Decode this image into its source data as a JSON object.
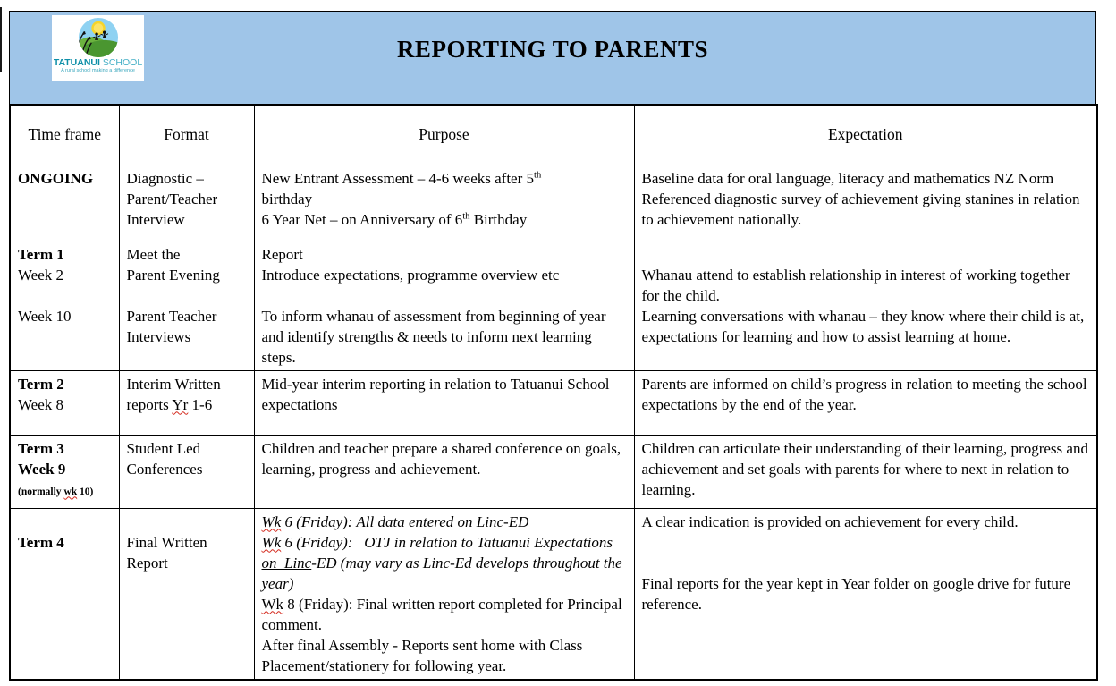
{
  "page": {
    "band_color": "#9FC5E8",
    "title": "REPORTING TO PARENTS"
  },
  "logo": {
    "name": "TATUANUI",
    "suffix": " SCHOOL",
    "tagline": "A rural school making a difference",
    "name_color": "#0e8fa8",
    "suffix_color": "#43afc6",
    "emblem": "school-sun-hills-children-emblem"
  },
  "table": {
    "headers": [
      "Time frame",
      "Format",
      "Purpose",
      "Expectation"
    ],
    "rows": [
      {
        "cells": [
          [
            [
              {
                "t": "ONGOING",
                "b": 1
              }
            ]
          ],
          [
            [
              {
                "t": "Diagnostic –"
              }
            ],
            [
              {
                "t": "Parent/Teacher"
              }
            ],
            [
              {
                "t": "Interview"
              }
            ]
          ],
          [
            [
              {
                "t": "New Entrant Assessment – 4-6 weeks after 5"
              },
              {
                "t": "th",
                "sup": 1
              }
            ],
            [
              {
                "t": "birthday"
              }
            ],
            [
              {
                "t": "6 Year Net – on Anniversary of 6"
              },
              {
                "t": "th",
                "sup": 1
              },
              {
                "t": " Birthday"
              }
            ]
          ],
          [
            [
              {
                "t": "Baseline data for oral language, literacy and mathematics NZ Norm Referenced diagnostic survey of achievement giving stanines in relation to achievement nationally."
              }
            ]
          ]
        ]
      },
      {
        "cells": [
          [
            [
              {
                "t": "Term 1",
                "b": 1
              }
            ],
            [
              {
                "t": "Week 2"
              }
            ],
            [],
            [
              {
                "t": "Week 10"
              }
            ]
          ],
          [
            [
              {
                "t": "Meet the"
              }
            ],
            [
              {
                "t": "Parent Evening"
              }
            ],
            [],
            [
              {
                "t": "Parent Teacher"
              }
            ],
            [
              {
                "t": "Interviews"
              }
            ]
          ],
          [
            [
              {
                "t": "Report"
              }
            ],
            [
              {
                "t": "Introduce expectations, programme overview etc"
              }
            ],
            [],
            [
              {
                "t": "To inform whanau of assessment from beginning of year and identify strengths & needs to inform next learning steps."
              }
            ]
          ],
          [
            [],
            [
              {
                "t": "Whanau attend to establish relationship in interest of working together for the child."
              }
            ],
            [
              {
                "t": "Learning conversations with whanau – they know where their child is at, expectations for learning and how to assist learning at home."
              }
            ]
          ]
        ]
      },
      {
        "cells": [
          [
            [
              {
                "t": "Term 2",
                "b": 1
              }
            ],
            [
              {
                "t": "Week 8"
              }
            ]
          ],
          [
            [
              {
                "t": "Interim Written"
              }
            ],
            [
              {
                "t": "reports "
              },
              {
                "t": "Yr",
                "w": 1
              },
              {
                "t": " 1-6"
              }
            ]
          ],
          [
            [
              {
                "t": "Mid-year interim reporting in relation to Tatuanui School expectations"
              }
            ]
          ],
          [
            [
              {
                "t": "Parents are informed on child’s progress in relation to meeting the school expectations by the end of the year."
              }
            ]
          ]
        ]
      },
      {
        "cells": [
          [
            [
              {
                "t": "Term 3",
                "b": 1
              }
            ],
            [
              {
                "t": "Week 9",
                "b": 1
              }
            ],
            [
              {
                "t": "(normally ",
                "b": 1,
                "s": 1
              },
              {
                "t": "wk",
                "b": 1,
                "s": 1,
                "w": 1
              },
              {
                "t": " 10)",
                "b": 1,
                "s": 1
              }
            ]
          ],
          [
            [
              {
                "t": "Student Led"
              }
            ],
            [
              {
                "t": "Conferences"
              }
            ]
          ],
          [
            [
              {
                "t": "Children and teacher prepare a shared conference on goals, learning, progress and achievement."
              }
            ]
          ],
          [
            [
              {
                "t": "Children can articulate their understanding of their learning, progress and achievement and set goals with parents for where to next in relation to learning."
              }
            ]
          ]
        ]
      },
      {
        "cells": [
          [
            [],
            [
              {
                "t": "Term 4",
                "b": 1
              }
            ]
          ],
          [
            [],
            [
              {
                "t": "Final Written"
              }
            ],
            [
              {
                "t": "Report"
              }
            ]
          ],
          [
            [
              {
                "t": "Wk",
                "i": 1,
                "w": 1
              },
              {
                "t": " 6 (Friday): All data entered on Linc-ED",
                "i": 1
              }
            ],
            [
              {
                "t": "Wk",
                "i": 1,
                "w": 1
              },
              {
                "t": " 6 (Friday):   OTJ in relation to Tatuanui Expectations ",
                "i": 1
              },
              {
                "t": "on  Linc",
                "i": 1,
                "u": 1
              },
              {
                "t": "-ED (may vary as Linc-Ed develops throughout the year)",
                "i": 1
              }
            ],
            [
              {
                "t": "Wk",
                "w": 1
              },
              {
                "t": " 8 (Friday): Final written report completed for Principal comment."
              }
            ],
            [
              {
                "t": "After final Assembly - Reports sent home with Class Placement/stationery for following year."
              }
            ]
          ],
          [
            [
              {
                "t": "A clear indication is provided on achievement for every child."
              }
            ],
            [],
            [],
            [
              {
                "t": "Final reports for the year kept in Year folder on google drive for future reference."
              }
            ]
          ]
        ]
      }
    ]
  }
}
